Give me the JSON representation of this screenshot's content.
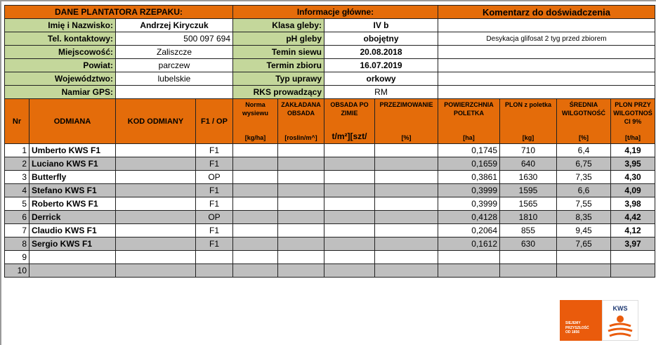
{
  "sections": {
    "plantator": "DANE PLANTATORA RZEPAKU:",
    "info": "Informacje główne:",
    "comment": "Komentarz do doświadczenia"
  },
  "plantator": [
    {
      "label": "Imię i Nazwisko:",
      "value": "Andrzej Kiryczuk"
    },
    {
      "label": "Tel. kontaktowy:",
      "value": "500 097 694"
    },
    {
      "label": "Miejscowość:",
      "value": "Zaliszcze"
    },
    {
      "label": "Powiat:",
      "value": "parczew"
    },
    {
      "label": "Województwo:",
      "value": "lubelskie"
    },
    {
      "label": "Namiar GPS:",
      "value": ""
    }
  ],
  "info": [
    {
      "label": "Klasa gleby:",
      "value": "IV b"
    },
    {
      "label": "pH gleby",
      "value": "obojętny"
    },
    {
      "label": "Temin siewu",
      "value": "20.08.2018"
    },
    {
      "label": "Termin zbioru",
      "value": "16.07.2019"
    },
    {
      "label": "Typ uprawy",
      "value": "orkowy"
    },
    {
      "label": "RKS prowadzący",
      "value": "RM"
    }
  ],
  "comment_text": "Desykacja glifosat 2 tyg przed zbiorem",
  "headers": {
    "nr": "Nr",
    "odmiana": "ODMIANA",
    "kod": "KOD ODMIANY",
    "f1op": "F1 / OP",
    "norma": "Norma wysiewu",
    "norma_unit": "[kg/ha]",
    "zakladana": "ZAKŁADANA OBSADA",
    "zakladana_unit": "[roslin/m^]",
    "obsada": "OBSADA PO ZIMIE",
    "obsada_unit": "t/m²][szt/",
    "przezim": "PRZEZIMOWANIE",
    "przezim_unit": "[%]",
    "pow": "POWIERZCHNIA POLETKA",
    "pow_unit": "[ha]",
    "plon": "PLON z poletka",
    "plon_unit": "[kg]",
    "wilg": "ŚREDNIA WILGOTNOŚĆ",
    "wilg_unit": "[%]",
    "plon9": "PLON PRZY WILGOTNOŚ CI 9%",
    "plon9_unit": "[t/ha]"
  },
  "rows": [
    {
      "nr": "1",
      "odmiana": "Umberto KWS F1",
      "kod": "",
      "f1op": "F1",
      "pow": "0,1745",
      "plon": "710",
      "wilg": "6,4",
      "plon9": "4,19"
    },
    {
      "nr": "2",
      "odmiana": "Luciano KWS  F1",
      "kod": "",
      "f1op": "F1",
      "pow": "0,1659",
      "plon": "640",
      "wilg": "6,75",
      "plon9": "3,95"
    },
    {
      "nr": "3",
      "odmiana": "Butterfly",
      "kod": "",
      "f1op": "OP",
      "pow": "0,3861",
      "plon": "1630",
      "wilg": "7,35",
      "plon9": "4,30"
    },
    {
      "nr": "4",
      "odmiana": "Stefano KWS F1",
      "kod": "",
      "f1op": "F1",
      "pow": "0,3999",
      "plon": "1595",
      "wilg": "6,6",
      "plon9": "4,09"
    },
    {
      "nr": "5",
      "odmiana": "Roberto KWS F1",
      "kod": "",
      "f1op": "F1",
      "pow": "0,3999",
      "plon": "1565",
      "wilg": "7,55",
      "plon9": "3,98"
    },
    {
      "nr": "6",
      "odmiana": "Derrick",
      "kod": "",
      "f1op": "OP",
      "pow": "0,4128",
      "plon": "1810",
      "wilg": "8,35",
      "plon9": "4,42"
    },
    {
      "nr": "7",
      "odmiana": "Claudio KWS F1",
      "kod": "",
      "f1op": "F1",
      "pow": "0,2064",
      "plon": "855",
      "wilg": "9,45",
      "plon9": "4,12"
    },
    {
      "nr": "8",
      "odmiana": "Sergio KWS F1",
      "kod": "",
      "f1op": "F1",
      "pow": "0,1612",
      "plon": "630",
      "wilg": "7,65",
      "plon9": "3,97"
    },
    {
      "nr": "9",
      "odmiana": "",
      "kod": "",
      "f1op": "",
      "pow": "",
      "plon": "",
      "wilg": "",
      "plon9": ""
    },
    {
      "nr": "10",
      "odmiana": "",
      "kod": "",
      "f1op": "",
      "pow": "",
      "plon": "",
      "wilg": "",
      "plon9": ""
    }
  ],
  "logo": {
    "brand": "KWS",
    "tagline_1": "SIEJEMY",
    "tagline_2": "PRZYSZŁOŚĆ",
    "tagline_3": "OD 1856"
  },
  "colors": {
    "orange": "#e46c0a",
    "green": "#c4d79b",
    "gray": "#bfbfbf"
  }
}
